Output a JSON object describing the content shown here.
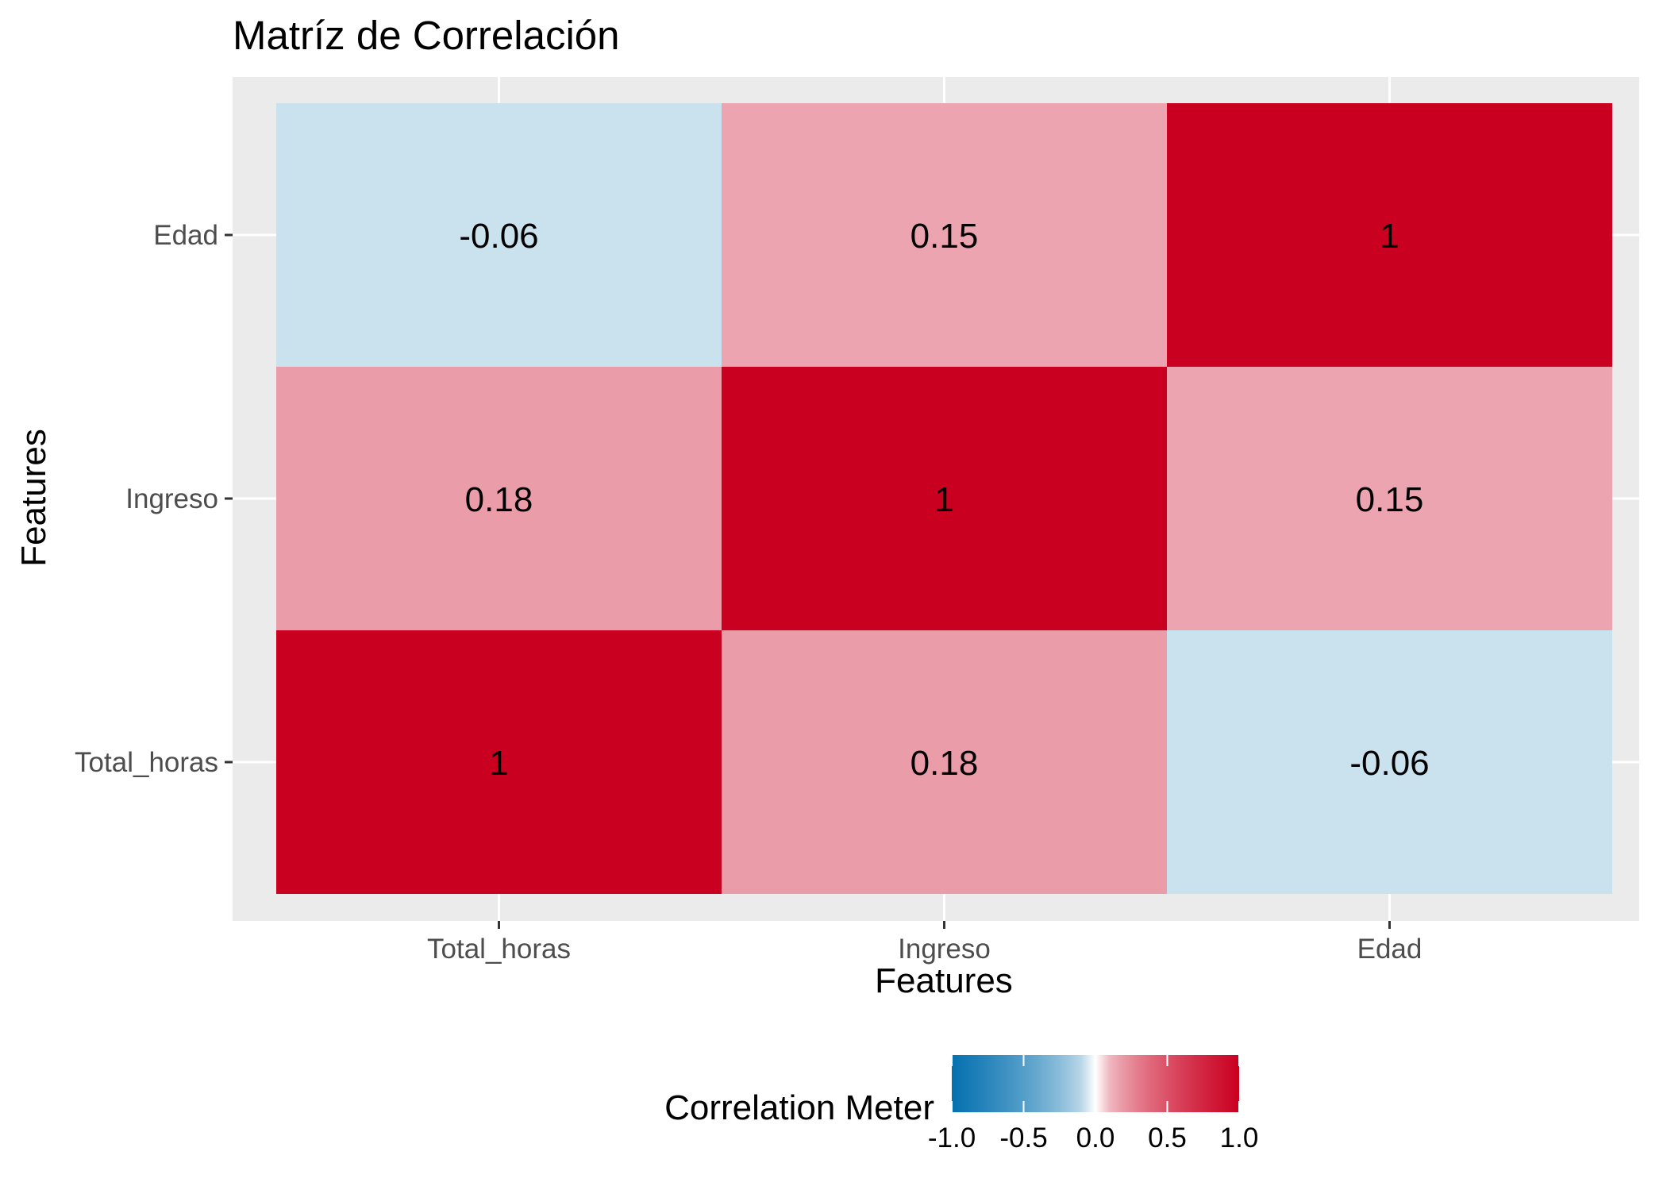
{
  "chart_data": {
    "type": "heatmap",
    "title": "Matríz de Correlación",
    "xlabel": "Features",
    "ylabel": "Features",
    "x_categories": [
      "Total_horas",
      "Ingreso",
      "Edad"
    ],
    "y_categories": [
      "Total_horas",
      "Ingreso",
      "Edad"
    ],
    "cells": [
      {
        "x": "Total_horas",
        "y": "Total_horas",
        "value": 1,
        "label": "1"
      },
      {
        "x": "Ingreso",
        "y": "Total_horas",
        "value": 0.18,
        "label": "0.18"
      },
      {
        "x": "Edad",
        "y": "Total_horas",
        "value": -0.06,
        "label": "-0.06"
      },
      {
        "x": "Total_horas",
        "y": "Ingreso",
        "value": 0.18,
        "label": "0.18"
      },
      {
        "x": "Ingreso",
        "y": "Ingreso",
        "value": 1,
        "label": "1"
      },
      {
        "x": "Edad",
        "y": "Ingreso",
        "value": 0.15,
        "label": "0.15"
      },
      {
        "x": "Total_horas",
        "y": "Edad",
        "value": -0.06,
        "label": "-0.06"
      },
      {
        "x": "Ingreso",
        "y": "Edad",
        "value": 0.15,
        "label": "0.15"
      },
      {
        "x": "Edad",
        "y": "Edad",
        "value": 1,
        "label": "1"
      }
    ],
    "legend": {
      "title": "Correlation Meter",
      "position": "bottom",
      "limits": [
        -1,
        1
      ],
      "ticks": [
        -1,
        -0.5,
        0,
        0.5,
        1
      ],
      "tick_labels": [
        "-1.0",
        "-0.5",
        "0.0",
        "0.5",
        "1.0"
      ],
      "low_color": "#0571B0",
      "mid_color": "#FFFFFF",
      "high_color": "#CA0020"
    },
    "grid": true,
    "panel_background": "#EBEBEB"
  }
}
